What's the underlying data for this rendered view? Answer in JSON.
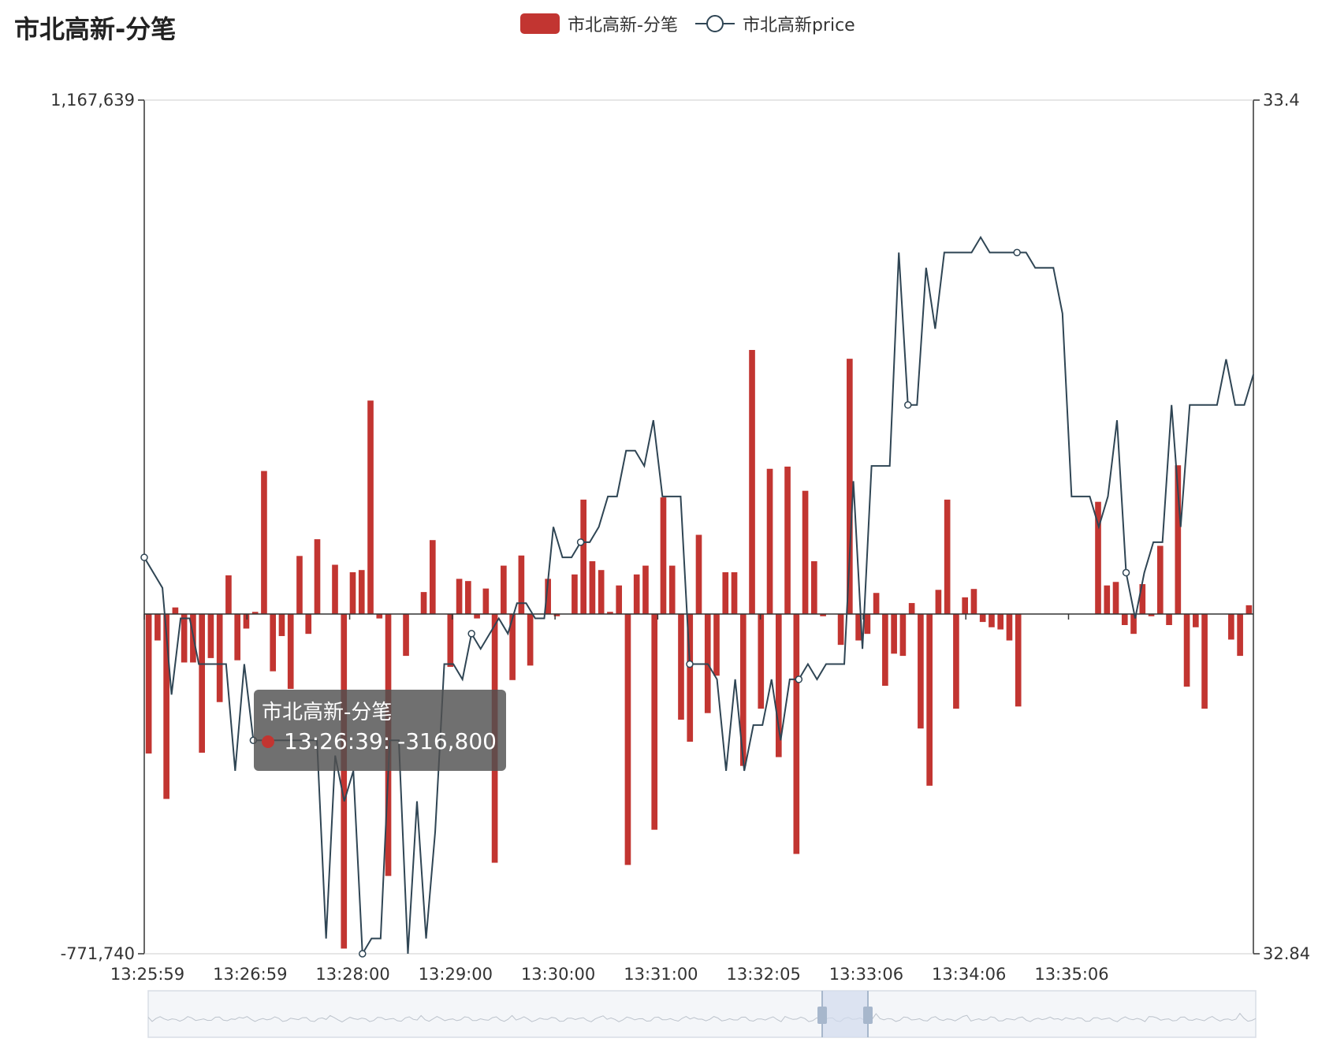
{
  "title": "市北高新-分笔",
  "legend": [
    {
      "name": "市北高新-分笔",
      "type": "bar",
      "color": "#c23531"
    },
    {
      "name": "市北高新price",
      "type": "line",
      "color": "#2f4554"
    }
  ],
  "tooltip": {
    "title": "市北高新-分笔",
    "time": "13:26:39",
    "value": "-316,800",
    "text": "13:26:39: -316,800"
  },
  "colors": {
    "bar": "#c23531",
    "line": "#2f4554",
    "axis": "#333333",
    "slider_fill": "#d2dbee",
    "slider_handle": "#a7b7cc"
  },
  "chart_data": {
    "type": "bar",
    "title": "市北高新-分笔",
    "x_tick_labels": [
      "13:25:59",
      "13:26:59",
      "13:28:00",
      "13:29:00",
      "13:30:00",
      "13:31:00",
      "13:32:05",
      "13:33:06",
      "13:34:06",
      "13:35:06"
    ],
    "y_left": {
      "min": -771740,
      "max": 1167639,
      "tick_labels": [
        "1,167,639",
        "-771,740"
      ]
    },
    "y_right": {
      "min": 32.84,
      "max": 33.4,
      "tick_labels": [
        "33.4",
        "32.84"
      ]
    },
    "legend_position": "top-center",
    "grid": false,
    "series": [
      {
        "name": "市北高新-分笔",
        "type": "bar",
        "axis": "left",
        "values": [
          -316800,
          -60000,
          -420000,
          15000,
          -110000,
          -110000,
          -315000,
          -100000,
          -200000,
          88000,
          -105000,
          -33000,
          5000,
          325000,
          -130000,
          -50000,
          -170000,
          132000,
          -45000,
          170000,
          0,
          112000,
          -760000,
          95000,
          100000,
          485000,
          -10000,
          -595000,
          0,
          -95000,
          0,
          50000,
          168000,
          0,
          -120000,
          80000,
          75000,
          -10000,
          58000,
          -565000,
          110000,
          -150000,
          133000,
          -117000,
          0,
          80000,
          -5000,
          0,
          90000,
          260000,
          120000,
          100000,
          5000,
          65000,
          -570000,
          90000,
          110000,
          -490000,
          265000,
          110000,
          -240000,
          -290000,
          180000,
          -225000,
          -140000,
          95000,
          95000,
          -345000,
          600000,
          -215000,
          330000,
          -325000,
          335000,
          -545000,
          280000,
          120000,
          -5000,
          0,
          -70000,
          580000,
          -60000,
          -45000,
          48000,
          -163000,
          -90000,
          -95000,
          25000,
          -260000,
          -390000,
          55000,
          260000,
          -215000,
          38000,
          57000,
          -18000,
          -30000,
          -35000,
          -60000,
          -210000,
          0,
          0,
          0,
          0,
          0,
          0,
          0,
          0,
          255000,
          65000,
          73000,
          -25000,
          -45000,
          68000,
          -5000,
          155000,
          -25000,
          338000,
          -165000,
          -30000,
          -215000,
          0,
          0,
          -58000,
          -95000,
          20000
        ]
      },
      {
        "name": "市北高新price",
        "type": "line",
        "axis": "right",
        "values": [
          33.1,
          33.09,
          33.08,
          33.01,
          33.06,
          33.06,
          33.03,
          33.03,
          33.03,
          33.03,
          32.96,
          33.03,
          32.98,
          32.98,
          32.98,
          32.98,
          32.98,
          32.98,
          32.98,
          32.98,
          32.85,
          32.97,
          32.94,
          32.96,
          32.84,
          32.85,
          32.85,
          32.98,
          32.98,
          32.84,
          32.94,
          32.85,
          32.92,
          33.03,
          33.03,
          33.02,
          33.05,
          33.04,
          33.05,
          33.06,
          33.05,
          33.07,
          33.07,
          33.06,
          33.06,
          33.12,
          33.1,
          33.1,
          33.11,
          33.11,
          33.12,
          33.14,
          33.14,
          33.17,
          33.17,
          33.16,
          33.19,
          33.14,
          33.14,
          33.14,
          33.03,
          33.03,
          33.03,
          33.02,
          32.96,
          33.02,
          32.96,
          32.99,
          32.99,
          33.02,
          32.98,
          33.02,
          33.02,
          33.03,
          33.02,
          33.03,
          33.03,
          33.03,
          33.15,
          33.04,
          33.16,
          33.16,
          33.16,
          33.3,
          33.2,
          33.2,
          33.29,
          33.25,
          33.3,
          33.3,
          33.3,
          33.3,
          33.31,
          33.3,
          33.3,
          33.3,
          33.3,
          33.3,
          33.29,
          33.29,
          33.29,
          33.26,
          33.14,
          33.14,
          33.14,
          33.12,
          33.14,
          33.19,
          33.09,
          33.06,
          33.09,
          33.11,
          33.11,
          33.2,
          33.12,
          33.2,
          33.2,
          33.2,
          33.2,
          33.23,
          33.2,
          33.2,
          33.22
        ]
      }
    ]
  }
}
